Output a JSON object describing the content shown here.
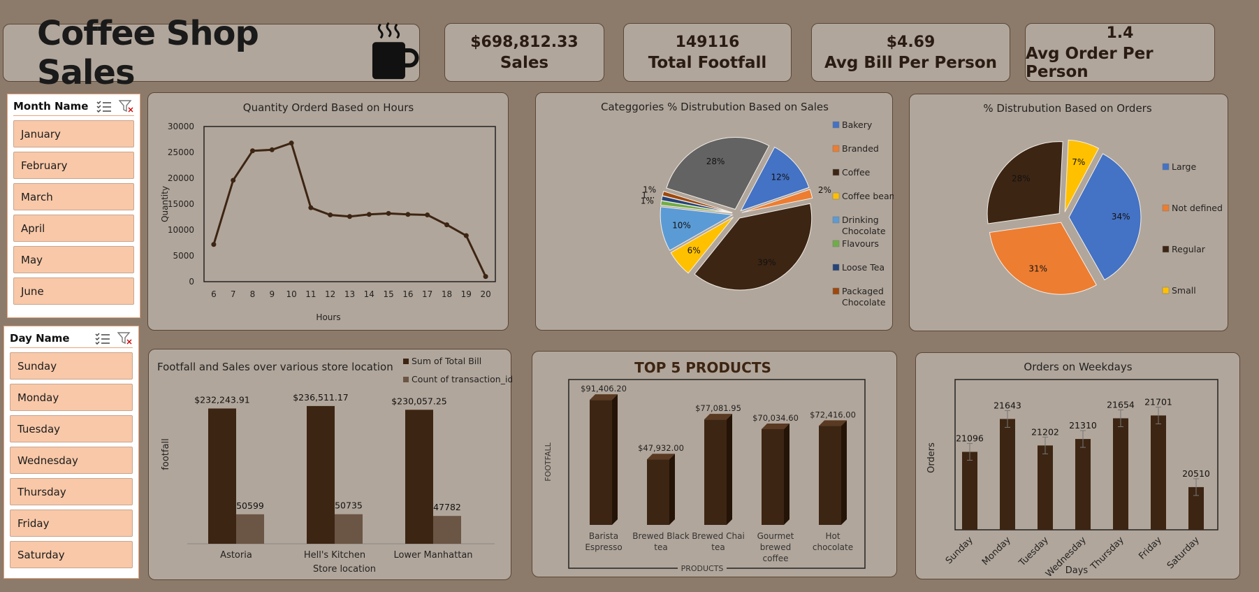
{
  "header": {
    "title": "Coffee Shop Sales"
  },
  "kpis": [
    {
      "value": "$698,812.33",
      "label": "Sales"
    },
    {
      "value": "149116",
      "label": "Total Footfall"
    },
    {
      "value": "$4.69",
      "label": "Avg Bill Per Person"
    },
    {
      "value": "1.4",
      "label": "Avg Order Per Person"
    }
  ],
  "slicers": {
    "month": {
      "title": "Month Name",
      "items": [
        "January",
        "February",
        "March",
        "April",
        "May",
        "June"
      ]
    },
    "day": {
      "title": "Day Name",
      "items": [
        "Sunday",
        "Monday",
        "Tuesday",
        "Wednesday",
        "Thursday",
        "Friday",
        "Saturday"
      ]
    }
  },
  "colors": {
    "background": "#8c7b6b",
    "card": "#b1a69b",
    "dark_brown": "#3d2513",
    "light_brown": "#6b5545",
    "slicer_item": "#f8c8a8"
  },
  "chart_data": [
    {
      "id": "hours",
      "type": "line",
      "title": "Quantity Orderd Based on Hours",
      "xlabel": "Hours",
      "ylabel": "Quantity",
      "x": [
        6,
        7,
        8,
        9,
        10,
        11,
        12,
        13,
        14,
        15,
        16,
        17,
        18,
        19,
        20
      ],
      "values": [
        7200,
        19600,
        25300,
        25500,
        26800,
        14300,
        12900,
        12600,
        13000,
        13200,
        13000,
        12900,
        11000,
        8900,
        1000
      ],
      "ylim": [
        0,
        30000
      ],
      "yticks": [
        0,
        5000,
        10000,
        15000,
        20000,
        25000,
        30000
      ],
      "color": "#3d2513"
    },
    {
      "id": "categories",
      "type": "pie",
      "title": "Categgories % Distrubution Based on Sales",
      "legend": [
        "Bakery",
        "Branded",
        "Coffee",
        "Coffee beans",
        "Drinking Chocolate",
        "Flavours",
        "Loose Tea",
        "Packaged Chocolate"
      ],
      "slices": [
        {
          "name": "Bakery",
          "value": 12,
          "label": "12%",
          "color": "#4472c4"
        },
        {
          "name": "Branded",
          "value": 2,
          "label": "2%",
          "color": "#ed7d31"
        },
        {
          "name": "Coffee",
          "value": 39,
          "label": "39%",
          "color": "#3d2513"
        },
        {
          "name": "Coffee beans",
          "value": 6,
          "label": "6%",
          "color": "#ffc000"
        },
        {
          "name": "Drinking Chocolate",
          "value": 10,
          "label": "10%",
          "color": "#5b9bd5"
        },
        {
          "name": "Flavours",
          "value": 1,
          "label": "1%",
          "color": "#70ad47"
        },
        {
          "name": "Loose Tea",
          "value": 1,
          "label": "1...",
          "color": "#264478"
        },
        {
          "name": "Packaged Chocolate",
          "value": 1,
          "label": "1%",
          "color": "#9e480e"
        },
        {
          "name": "",
          "value": 28,
          "label": "28%",
          "color": "#636363"
        }
      ]
    },
    {
      "id": "sizes",
      "type": "pie",
      "title": "% Distrubution Based on Orders",
      "legend": [
        "Large",
        "Not defined",
        "Regular",
        "Small"
      ],
      "slices": [
        {
          "name": "Large",
          "value": 34,
          "label": "34%",
          "color": "#4472c4"
        },
        {
          "name": "Not defined",
          "value": 31,
          "label": "31%",
          "color": "#ed7d31"
        },
        {
          "name": "Regular",
          "value": 28,
          "label": "28%",
          "color": "#3d2513"
        },
        {
          "name": "Small",
          "value": 7,
          "label": "7%",
          "color": "#ffc000"
        }
      ]
    },
    {
      "id": "stores",
      "type": "bar",
      "title": "Footfall and Sales over various store location",
      "xlabel": "Store location",
      "ylabel": "footfall",
      "categories": [
        "Astoria",
        "Hell's Kitchen",
        "Lower Manhattan"
      ],
      "series": [
        {
          "name": "Sum of Total Bill",
          "values": [
            232243.91,
            236511.17,
            230057.25
          ],
          "labels": [
            "$232,243.91",
            "$236,511.17",
            "$230,057.25"
          ],
          "color": "#3d2513"
        },
        {
          "name": "Count of transaction_id",
          "values": [
            50599,
            50735,
            47782
          ],
          "labels": [
            "50599",
            "50735",
            "47782"
          ],
          "color": "#6b5545"
        }
      ]
    },
    {
      "id": "top5",
      "type": "bar",
      "title": "TOP 5 PRODUCTS",
      "xlabel": "PRODUCTS",
      "ylabel": "FOOTFALL",
      "categories": [
        "Barista Espresso",
        "Brewed Black tea",
        "Brewed Chai tea",
        "Gourmet brewed coffee",
        "Hot chocolate"
      ],
      "values": [
        91406.2,
        47932.0,
        77081.95,
        70034.6,
        72416.0
      ],
      "labels": [
        "$91,406.20",
        "$47,932.00",
        "$77,081.95",
        "$70,034.60",
        "$72,416.00"
      ],
      "color": "#3d2513"
    },
    {
      "id": "weekdays",
      "type": "bar",
      "title": "Orders on Weekdays",
      "xlabel": "Days",
      "ylabel": "Orders",
      "categories": [
        "Sunday",
        "Monday",
        "Tuesday",
        "Wednesday",
        "Thursday",
        "Friday",
        "Saturday"
      ],
      "values": [
        21096,
        21643,
        21202,
        21310,
        21654,
        21701,
        20510
      ],
      "color": "#3d2513"
    }
  ]
}
